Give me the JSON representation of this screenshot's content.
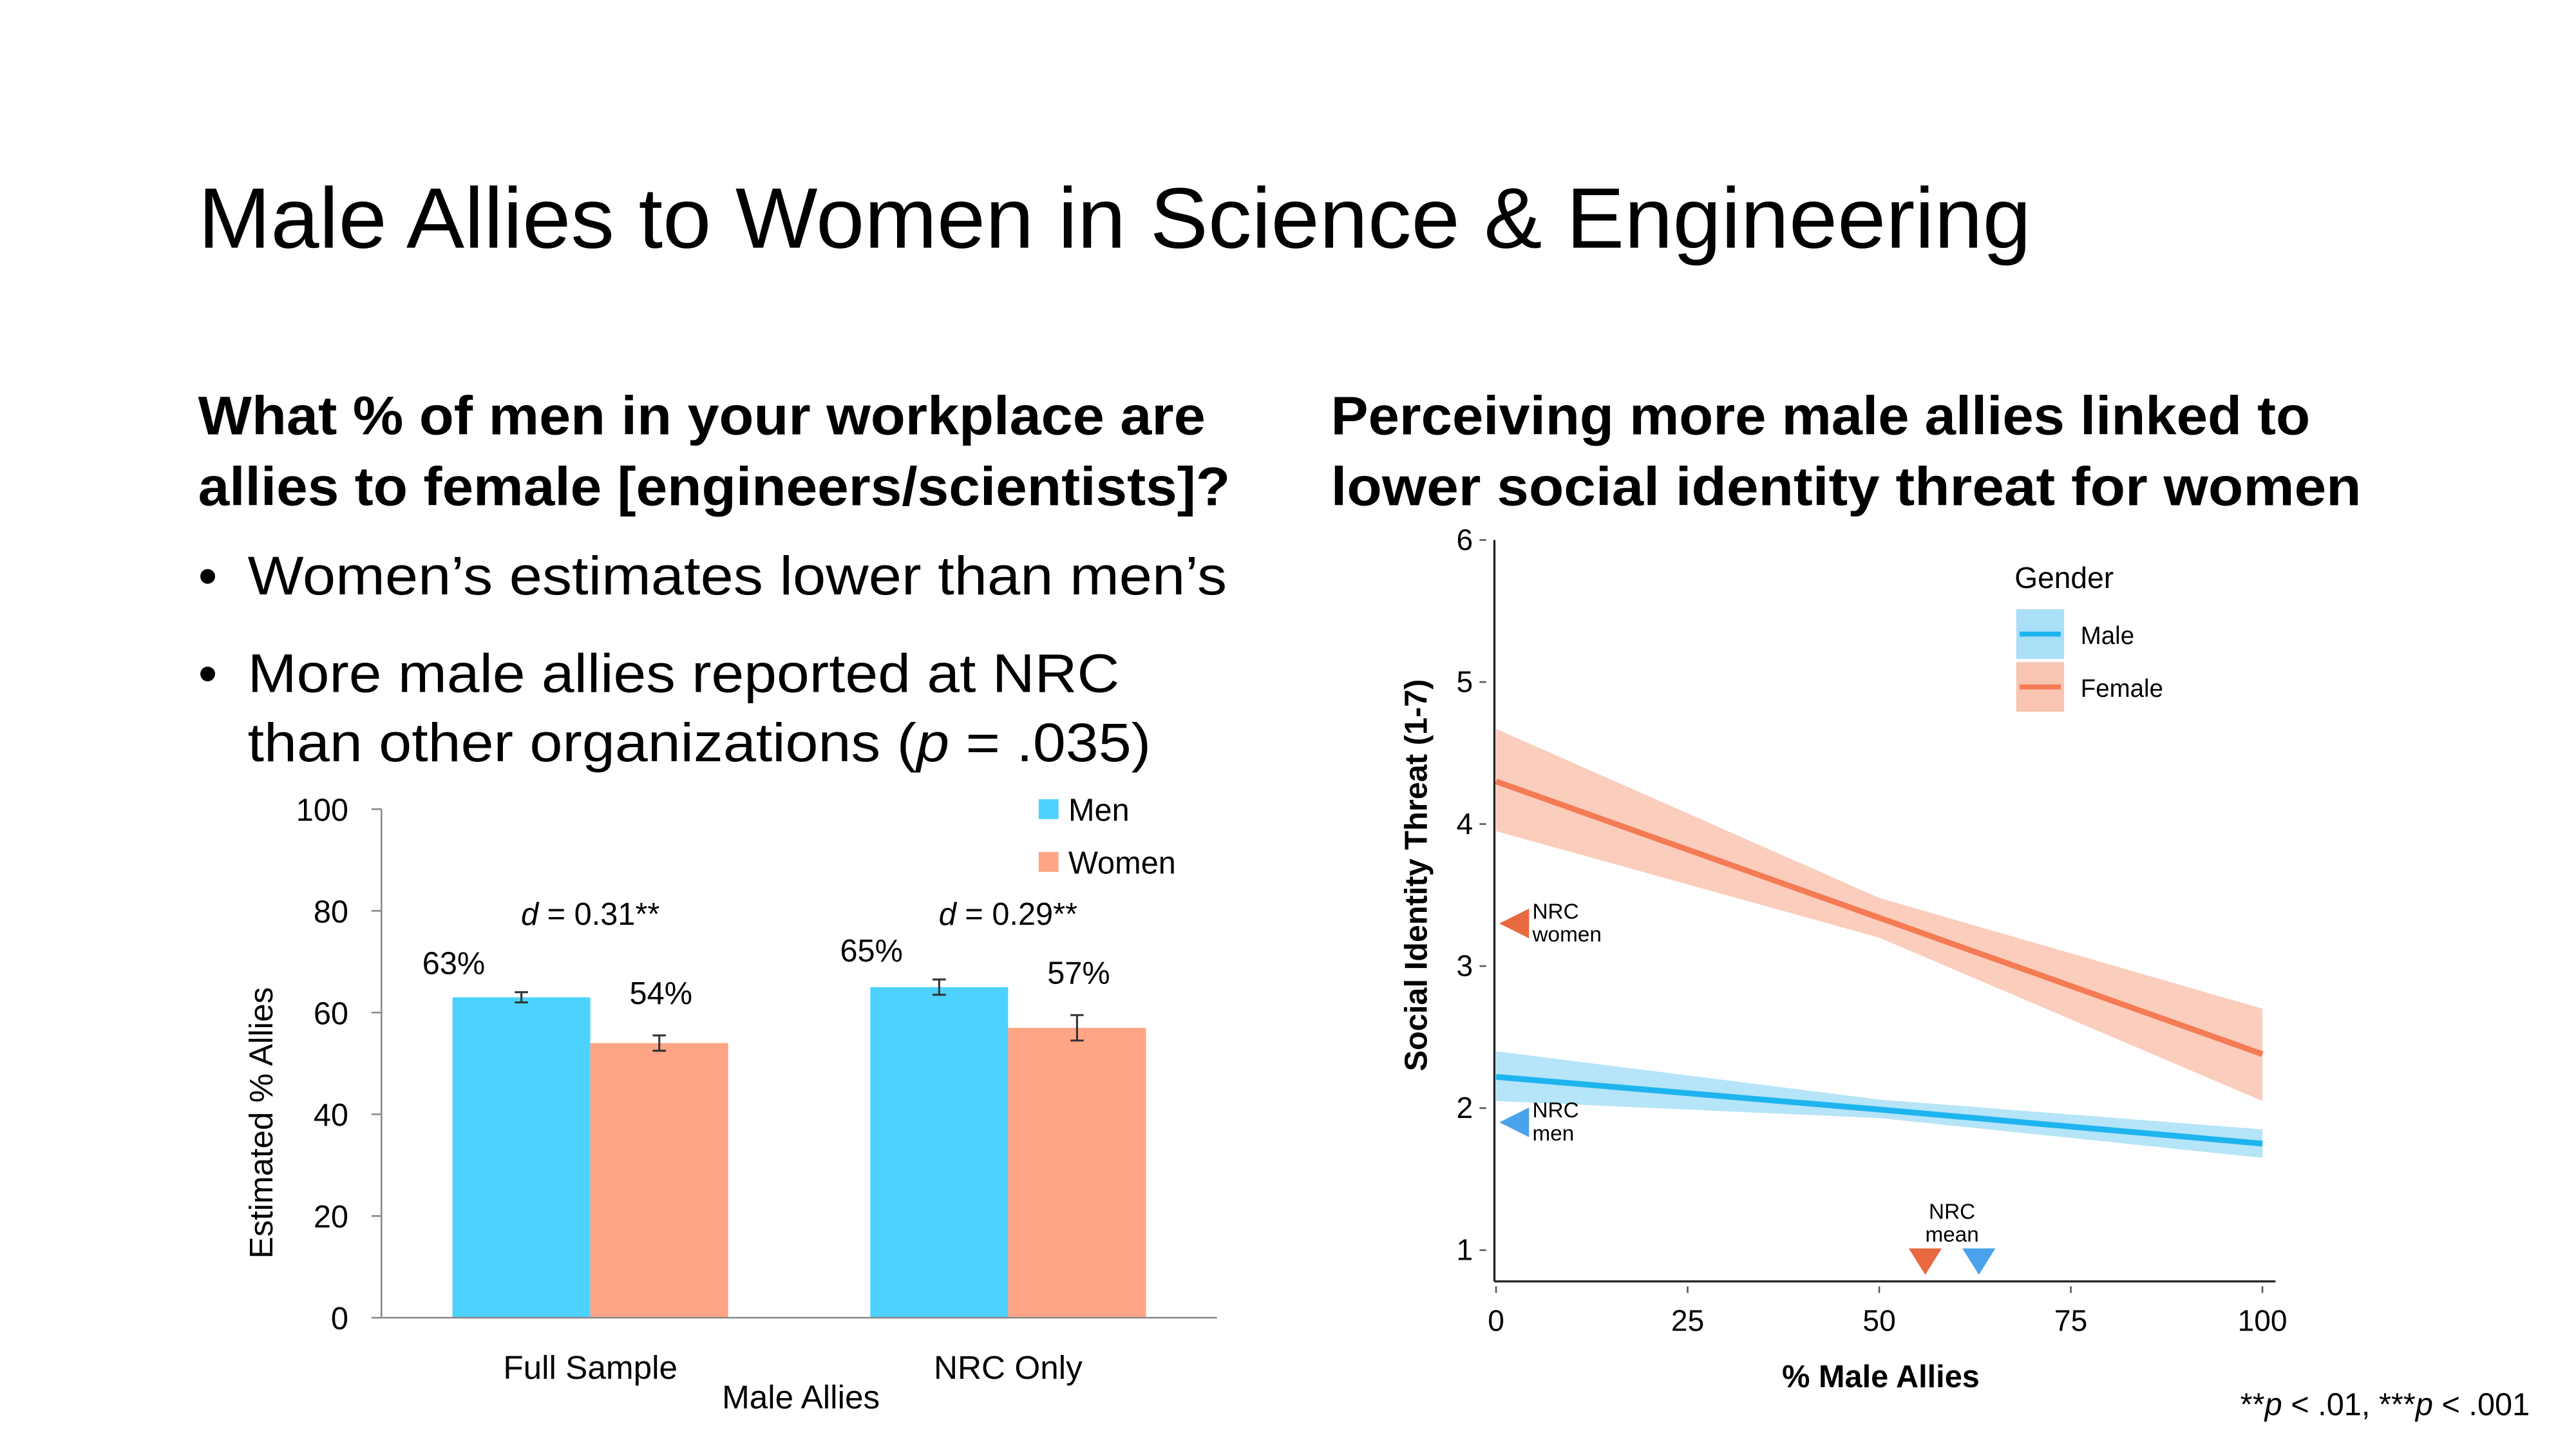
{
  "slide": {
    "title": "Male Allies to Women in Science & Engineering",
    "left_heading": [
      "What % of men in your workplace are",
      "allies to female [engineers/scientists]?"
    ],
    "bullets": [
      [
        [
          {
            "text": "Women’s estimates lower than men’s"
          }
        ]
      ],
      [
        [
          {
            "text": "More male allies reported at NRC"
          }
        ],
        [
          {
            "text": "than other organizations ("
          },
          {
            "text": "p",
            "italic": true
          },
          {
            "text": " = .035)"
          }
        ]
      ]
    ],
    "right_heading": [
      "Perceiving more male allies linked to",
      "lower social identity threat for women"
    ],
    "footnote": [
      {
        "text": "**"
      },
      {
        "text": "p",
        "italic": true
      },
      {
        "text": " < .01, ***"
      },
      {
        "text": "p",
        "italic": true
      },
      {
        "text": " < .001"
      }
    ]
  },
  "chart_data": [
    {
      "type": "bar",
      "categories": [
        "Full Sample",
        "NRC Only"
      ],
      "series": [
        {
          "name": "Men",
          "color": "#4dd2ff",
          "values": [
            63,
            65
          ],
          "value_labels": [
            "63%",
            "65%"
          ],
          "errors": [
            1,
            1.5
          ]
        },
        {
          "name": "Women",
          "color": "#ffa585",
          "values": [
            54,
            57
          ],
          "value_labels": [
            "54%",
            "57%"
          ],
          "errors": [
            1.5,
            2.5
          ]
        }
      ],
      "annotations": [
        [
          {
            "text": "d",
            "italic": true
          },
          {
            "text": " = 0.31**"
          }
        ],
        [
          {
            "text": "d",
            "italic": true
          },
          {
            "text": " = 0.29**"
          }
        ]
      ],
      "ylim": [
        0,
        100
      ],
      "yticks": [
        0,
        20,
        40,
        60,
        80,
        100
      ],
      "ylabel": "Estimated % Allies",
      "xlabel": "Male Allies",
      "legend": "top-right"
    },
    {
      "type": "line",
      "x": [
        0,
        50,
        100
      ],
      "series": [
        {
          "name": "Male",
          "color": "#1eb4ee",
          "band_color": "#a9dff7",
          "values": [
            2.22,
            1.99,
            1.75
          ],
          "lower": [
            2.05,
            1.93,
            1.65
          ],
          "upper": [
            2.4,
            2.06,
            1.85
          ]
        },
        {
          "name": "Female",
          "color": "#f47b54",
          "band_color": "#f9c4b2",
          "values": [
            4.3,
            3.34,
            2.38
          ],
          "lower": [
            3.95,
            3.2,
            2.05
          ],
          "upper": [
            4.67,
            3.48,
            2.7
          ]
        }
      ],
      "xlim": [
        0,
        101.7
      ],
      "xticks": [
        0,
        25,
        50,
        75,
        100
      ],
      "ylim": [
        0.78,
        6
      ],
      "yticks": [
        1,
        2,
        3,
        4,
        5,
        6
      ],
      "xlabel": "% Male Allies",
      "ylabel": "Social Identity Threat (1-7)",
      "legend_title": "Gender",
      "legend": "top-right",
      "y_markers": [
        {
          "label": [
            "NRC",
            "women"
          ],
          "y": 3.3,
          "color": "#e8683f"
        },
        {
          "label": [
            "NRC",
            "men"
          ],
          "y": 1.9,
          "color": "#4aa3ea"
        }
      ],
      "x_marker": {
        "label": [
          "NRC",
          "mean"
        ],
        "x": [
          56,
          63
        ],
        "colors": [
          "#e8683f",
          "#4aa3ea"
        ]
      }
    }
  ]
}
